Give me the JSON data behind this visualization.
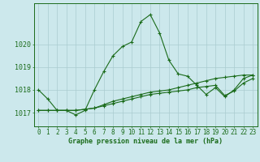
{
  "title": "Graphe pression niveau de la mer (hPa)",
  "background_color": "#cce8ec",
  "grid_color": "#aaccd0",
  "line_color": "#1a6b1a",
  "spine_color": "#1a6b1a",
  "x_values": [
    0,
    1,
    2,
    3,
    4,
    5,
    6,
    7,
    8,
    9,
    10,
    11,
    12,
    13,
    14,
    15,
    16,
    17,
    18,
    19,
    20,
    21,
    22,
    23
  ],
  "x_labels": [
    "0",
    "1",
    "2",
    "3",
    "4",
    "5",
    "6",
    "7",
    "8",
    "9",
    "10",
    "11",
    "12",
    "13",
    "14",
    "15",
    "16",
    "17",
    "18",
    "19",
    "20",
    "21",
    "22",
    "23"
  ],
  "ylim": [
    1016.4,
    1021.8
  ],
  "yticks": [
    1017,
    1018,
    1019,
    1020
  ],
  "series1": [
    1018.0,
    1017.6,
    1017.1,
    1017.1,
    1016.9,
    1017.1,
    1018.0,
    1018.8,
    1019.5,
    1019.9,
    1020.1,
    1021.0,
    1021.3,
    1020.5,
    1019.3,
    1018.7,
    1018.6,
    1018.2,
    1017.8,
    1018.1,
    1017.7,
    1018.0,
    1018.5,
    1018.65
  ],
  "series2": [
    1017.1,
    1017.1,
    1017.1,
    1017.1,
    1017.1,
    1017.15,
    1017.2,
    1017.3,
    1017.4,
    1017.5,
    1017.6,
    1017.7,
    1017.8,
    1017.85,
    1017.9,
    1017.95,
    1018.0,
    1018.1,
    1018.15,
    1018.2,
    1017.75,
    1017.95,
    1018.3,
    1018.5
  ],
  "series3": [
    1017.1,
    1017.1,
    1017.1,
    1017.1,
    1017.1,
    1017.15,
    1017.2,
    1017.35,
    1017.5,
    1017.6,
    1017.7,
    1017.8,
    1017.9,
    1017.95,
    1018.0,
    1018.1,
    1018.2,
    1018.3,
    1018.4,
    1018.5,
    1018.55,
    1018.6,
    1018.65,
    1018.65
  ],
  "figsize": [
    3.2,
    2.0
  ],
  "dpi": 100,
  "title_fontsize": 6.0,
  "tick_fontsize": 5.5,
  "linewidth": 0.8,
  "markersize": 3.0
}
